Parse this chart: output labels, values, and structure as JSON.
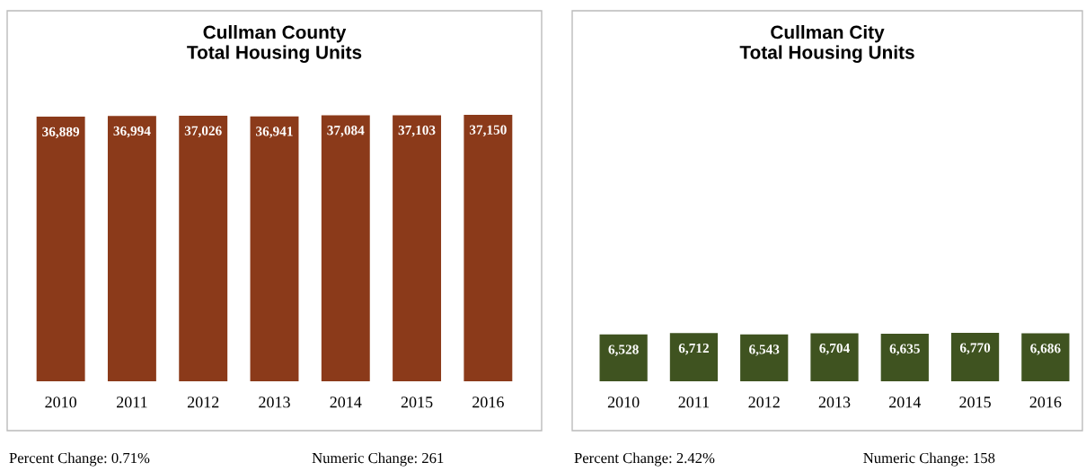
{
  "chart_data": [
    {
      "type": "bar",
      "title": "Cullman County\nTotal Housing Units",
      "categories": [
        "2010",
        "2011",
        "2012",
        "2013",
        "2014",
        "2015",
        "2016"
      ],
      "values": [
        36889,
        36994,
        37026,
        36941,
        37084,
        37103,
        37150
      ],
      "value_labels": [
        "36,889",
        "36,994",
        "37,026",
        "36,941",
        "37,084",
        "37,103",
        "37,150"
      ],
      "color": "#8b3a1a",
      "grid": false,
      "legend": false,
      "annotations": [
        "Percent Change: 0.71%",
        "Numeric Change: 261"
      ]
    },
    {
      "type": "bar",
      "title": "Cullman City\nTotal Housing Units",
      "categories": [
        "2010",
        "2011",
        "2012",
        "2013",
        "2014",
        "2015",
        "2016"
      ],
      "values": [
        6528,
        6712,
        6543,
        6704,
        6635,
        6770,
        6686
      ],
      "value_labels": [
        "6,528",
        "6,712",
        "6,543",
        "6,704",
        "6,635",
        "6,770",
        "6,686"
      ],
      "color": "#3f5320",
      "grid": false,
      "legend": false,
      "annotations": [
        "Percent Change: 2.42%",
        "Numeric Change: 158"
      ]
    }
  ]
}
